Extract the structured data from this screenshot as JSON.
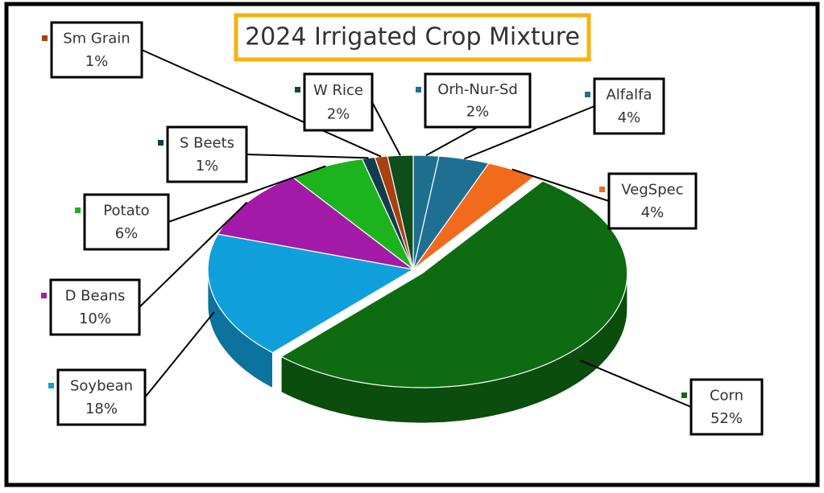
{
  "chart_data": {
    "type": "pie3d",
    "title": "2024 Irrigated Crop Mixture",
    "categories": [
      "Orh-Nur-Sd",
      "Alfalfa",
      "VegSpec",
      "Corn",
      "Soybean",
      "D Beans",
      "Potato",
      "S Beets",
      "Sm Grain",
      "W Rice"
    ],
    "values": [
      2,
      4,
      4,
      52,
      18,
      10,
      6,
      1,
      1,
      2
    ],
    "value_labels": [
      "2%",
      "4%",
      "4%",
      "52%",
      "18%",
      "10%",
      "6%",
      "1%",
      "1%",
      "2%"
    ],
    "colors": [
      "#1d6f8e",
      "#1f6f93",
      "#f26a1b",
      "#0e6b12",
      "#0fa0dc",
      "#a31aa8",
      "#1db31d",
      "#123d4c",
      "#a8400f",
      "#0f4d1a"
    ]
  }
}
